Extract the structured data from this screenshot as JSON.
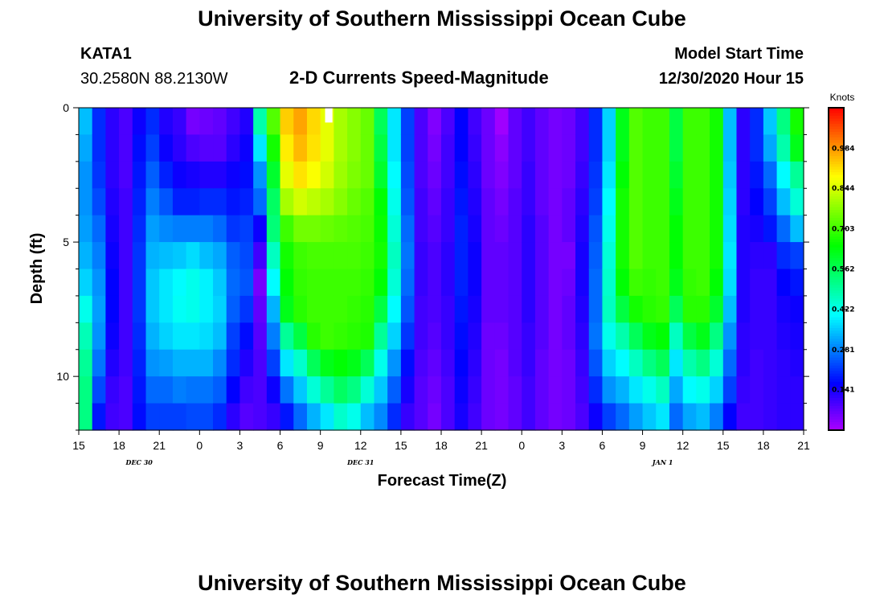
{
  "header": {
    "title_top": "University of Southern Mississippi Ocean Cube",
    "title_bottom": "University of Southern Mississippi Ocean Cube",
    "station": "KATA1",
    "coords": "30.2580N 88.2130W",
    "subtitle": "2-D Currents Speed-Magnitude",
    "model_label": "Model Start Time",
    "model_time": "12/30/2020 Hour 15"
  },
  "chart_data": {
    "type": "heatmap",
    "title": "2-D Currents Speed-Magnitude",
    "xlabel": "Forecast Time(Z)",
    "ylabel": "Depth (ft)",
    "x_tick_labels": [
      "15",
      "18",
      "21",
      "0",
      "3",
      "6",
      "9",
      "12",
      "15",
      "18",
      "21",
      "0",
      "3",
      "6",
      "9",
      "12",
      "15",
      "18",
      "21"
    ],
    "x_range_hours": [
      0,
      54
    ],
    "date_labels": [
      {
        "text": "DEC 30",
        "hour": 4.5
      },
      {
        "text": "DEC 31",
        "hour": 21
      },
      {
        "text": "JAN 1",
        "hour": 43.5
      }
    ],
    "y_tick_labels": [
      "0",
      "5",
      "10"
    ],
    "y_tick_values": [
      0,
      5,
      10
    ],
    "ylim": [
      0,
      12
    ],
    "colorbar": {
      "label": "Knots",
      "min": 0.0,
      "max": 1.125,
      "ticks": [
        "0.984",
        "0.844",
        "0.703",
        "0.562",
        "0.422",
        "0.281",
        "0.141"
      ],
      "tick_values": [
        0.984,
        0.844,
        0.703,
        0.562,
        0.422,
        0.281,
        0.141
      ]
    },
    "grid": {
      "cols": 54,
      "rows": 12
    },
    "profiles": [
      [
        0.34,
        0.32,
        0.3,
        0.3,
        0.31,
        0.33,
        0.36,
        0.42,
        0.47,
        0.5,
        0.52,
        0.52
      ],
      [
        0.2,
        0.2,
        0.21,
        0.23,
        0.26,
        0.28,
        0.3,
        0.31,
        0.3,
        0.27,
        0.23,
        0.18
      ],
      [
        0.12,
        0.12,
        0.12,
        0.13,
        0.14,
        0.15,
        0.16,
        0.16,
        0.15,
        0.13,
        0.11,
        0.1
      ],
      [
        0.09,
        0.09,
        0.09,
        0.1,
        0.1,
        0.1,
        0.1,
        0.1,
        0.1,
        0.1,
        0.09,
        0.09
      ],
      [
        0.15,
        0.17,
        0.18,
        0.19,
        0.2,
        0.21,
        0.21,
        0.21,
        0.2,
        0.19,
        0.18,
        0.17
      ],
      [
        0.2,
        0.22,
        0.25,
        0.28,
        0.31,
        0.33,
        0.35,
        0.35,
        0.33,
        0.3,
        0.26,
        0.22
      ],
      [
        0.13,
        0.15,
        0.19,
        0.24,
        0.29,
        0.34,
        0.38,
        0.38,
        0.36,
        0.31,
        0.26,
        0.22
      ],
      [
        0.11,
        0.12,
        0.15,
        0.19,
        0.28,
        0.35,
        0.4,
        0.41,
        0.38,
        0.33,
        0.28,
        0.22
      ],
      [
        0.05,
        0.09,
        0.14,
        0.19,
        0.28,
        0.37,
        0.42,
        0.42,
        0.38,
        0.33,
        0.27,
        0.23
      ],
      [
        0.06,
        0.08,
        0.13,
        0.2,
        0.28,
        0.34,
        0.39,
        0.39,
        0.37,
        0.33,
        0.27,
        0.23
      ],
      [
        0.07,
        0.08,
        0.13,
        0.2,
        0.26,
        0.32,
        0.35,
        0.36,
        0.34,
        0.29,
        0.25,
        0.2
      ],
      [
        0.1,
        0.12,
        0.15,
        0.18,
        0.21,
        0.25,
        0.26,
        0.25,
        0.22,
        0.2,
        0.16,
        0.12
      ],
      [
        0.13,
        0.15,
        0.17,
        0.19,
        0.22,
        0.23,
        0.24,
        0.21,
        0.17,
        0.13,
        0.1,
        0.08
      ],
      [
        0.48,
        0.38,
        0.3,
        0.26,
        0.15,
        0.1,
        0.05,
        0.07,
        0.08,
        0.09,
        0.09,
        0.09
      ],
      [
        0.72,
        0.66,
        0.6,
        0.55,
        0.53,
        0.46,
        0.4,
        0.33,
        0.28,
        0.22,
        0.15,
        0.11
      ],
      [
        0.93,
        0.9,
        0.86,
        0.8,
        0.7,
        0.66,
        0.64,
        0.62,
        0.5,
        0.38,
        0.27,
        0.18
      ],
      [
        0.97,
        0.95,
        0.91,
        0.84,
        0.75,
        0.7,
        0.69,
        0.68,
        0.58,
        0.45,
        0.35,
        0.26
      ],
      [
        0.92,
        0.91,
        0.88,
        0.82,
        0.75,
        0.71,
        0.7,
        0.7,
        0.68,
        0.56,
        0.44,
        0.33
      ],
      [
        0.86,
        0.86,
        0.84,
        0.8,
        0.74,
        0.71,
        0.7,
        0.7,
        0.7,
        0.62,
        0.5,
        0.38
      ],
      [
        0.8,
        0.8,
        0.79,
        0.77,
        0.73,
        0.71,
        0.7,
        0.7,
        0.69,
        0.64,
        0.55,
        0.45
      ],
      [
        0.77,
        0.77,
        0.76,
        0.74,
        0.72,
        0.71,
        0.7,
        0.69,
        0.68,
        0.62,
        0.52,
        0.42
      ],
      [
        0.74,
        0.74,
        0.74,
        0.72,
        0.71,
        0.7,
        0.69,
        0.68,
        0.67,
        0.56,
        0.44,
        0.34
      ],
      [
        0.56,
        0.58,
        0.6,
        0.64,
        0.65,
        0.66,
        0.64,
        0.58,
        0.5,
        0.42,
        0.35,
        0.29
      ],
      [
        0.38,
        0.38,
        0.4,
        0.42,
        0.44,
        0.46,
        0.44,
        0.4,
        0.36,
        0.3,
        0.25,
        0.2
      ],
      [
        0.22,
        0.22,
        0.23,
        0.24,
        0.26,
        0.27,
        0.26,
        0.24,
        0.21,
        0.17,
        0.14,
        0.11
      ],
      [
        0.09,
        0.09,
        0.09,
        0.1,
        0.1,
        0.11,
        0.11,
        0.1,
        0.1,
        0.09,
        0.08,
        0.08
      ],
      [
        0.04,
        0.05,
        0.06,
        0.07,
        0.08,
        0.09,
        0.09,
        0.09,
        0.08,
        0.07,
        0.06,
        0.05
      ],
      [
        0.09,
        0.1,
        0.1,
        0.11,
        0.11,
        0.12,
        0.12,
        0.11,
        0.11,
        0.1,
        0.09,
        0.09
      ],
      [
        0.16,
        0.16,
        0.17,
        0.18,
        0.19,
        0.19,
        0.19,
        0.18,
        0.17,
        0.16,
        0.15,
        0.14
      ],
      [
        0.1,
        0.11,
        0.12,
        0.13,
        0.14,
        0.15,
        0.15,
        0.14,
        0.13,
        0.12,
        0.11,
        0.1
      ],
      [
        0.06,
        0.06,
        0.06,
        0.07,
        0.07,
        0.07,
        0.07,
        0.07,
        0.06,
        0.06,
        0.06,
        0.06
      ],
      [
        0.01,
        0.03,
        0.04,
        0.05,
        0.06,
        0.07,
        0.07,
        0.07,
        0.06,
        0.05,
        0.05,
        0.05
      ],
      [
        0.07,
        0.07,
        0.07,
        0.08,
        0.08,
        0.08,
        0.08,
        0.08,
        0.08,
        0.08,
        0.07,
        0.07
      ],
      [
        0.1,
        0.1,
        0.11,
        0.11,
        0.12,
        0.12,
        0.12,
        0.12,
        0.11,
        0.11,
        0.1,
        0.1
      ],
      [
        0.07,
        0.07,
        0.07,
        0.07,
        0.08,
        0.08,
        0.08,
        0.08,
        0.08,
        0.07,
        0.07,
        0.07
      ],
      [
        0.05,
        0.05,
        0.05,
        0.05,
        0.05,
        0.05,
        0.05,
        0.05,
        0.05,
        0.05,
        0.05,
        0.05
      ],
      [
        0.06,
        0.06,
        0.06,
        0.07,
        0.07,
        0.05,
        0.06,
        0.07,
        0.07,
        0.06,
        0.06,
        0.06
      ],
      [
        0.1,
        0.1,
        0.11,
        0.12,
        0.13,
        0.14,
        0.14,
        0.13,
        0.12,
        0.11,
        0.1,
        0.09
      ],
      [
        0.2,
        0.2,
        0.21,
        0.22,
        0.24,
        0.25,
        0.26,
        0.26,
        0.27,
        0.24,
        0.2,
        0.15
      ],
      [
        0.36,
        0.36,
        0.38,
        0.4,
        0.42,
        0.44,
        0.45,
        0.46,
        0.42,
        0.36,
        0.3,
        0.22
      ],
      [
        0.62,
        0.62,
        0.64,
        0.66,
        0.66,
        0.66,
        0.64,
        0.58,
        0.48,
        0.4,
        0.33,
        0.26
      ],
      [
        0.72,
        0.72,
        0.72,
        0.72,
        0.72,
        0.72,
        0.7,
        0.66,
        0.56,
        0.46,
        0.38,
        0.31
      ],
      [
        0.7,
        0.7,
        0.7,
        0.7,
        0.7,
        0.7,
        0.69,
        0.68,
        0.62,
        0.52,
        0.42,
        0.35
      ],
      [
        0.7,
        0.7,
        0.7,
        0.7,
        0.7,
        0.7,
        0.7,
        0.69,
        0.64,
        0.56,
        0.46,
        0.38
      ],
      [
        0.58,
        0.58,
        0.6,
        0.62,
        0.64,
        0.64,
        0.62,
        0.56,
        0.46,
        0.38,
        0.32,
        0.26
      ],
      [
        0.7,
        0.7,
        0.7,
        0.7,
        0.7,
        0.7,
        0.69,
        0.68,
        0.58,
        0.48,
        0.4,
        0.32
      ],
      [
        0.7,
        0.7,
        0.7,
        0.7,
        0.7,
        0.7,
        0.7,
        0.68,
        0.62,
        0.52,
        0.42,
        0.34
      ],
      [
        0.66,
        0.66,
        0.66,
        0.66,
        0.66,
        0.66,
        0.64,
        0.6,
        0.52,
        0.44,
        0.36,
        0.28
      ],
      [
        0.34,
        0.34,
        0.35,
        0.36,
        0.37,
        0.38,
        0.37,
        0.34,
        0.3,
        0.26,
        0.22,
        0.16
      ],
      [
        0.12,
        0.12,
        0.12,
        0.12,
        0.13,
        0.13,
        0.13,
        0.13,
        0.12,
        0.12,
        0.11,
        0.1
      ],
      [
        0.2,
        0.2,
        0.18,
        0.16,
        0.14,
        0.12,
        0.11,
        0.11,
        0.11,
        0.1,
        0.1,
        0.1
      ],
      [
        0.35,
        0.32,
        0.26,
        0.22,
        0.18,
        0.12,
        0.11,
        0.11,
        0.11,
        0.11,
        0.11,
        0.11
      ],
      [
        0.52,
        0.48,
        0.4,
        0.34,
        0.26,
        0.2,
        0.16,
        0.14,
        0.13,
        0.12,
        0.12,
        0.12
      ],
      [
        0.66,
        0.62,
        0.5,
        0.44,
        0.34,
        0.22,
        0.18,
        0.15,
        0.14,
        0.13,
        0.12,
        0.12
      ]
    ],
    "missing_cell": {
      "col": 18,
      "row": 0
    }
  }
}
